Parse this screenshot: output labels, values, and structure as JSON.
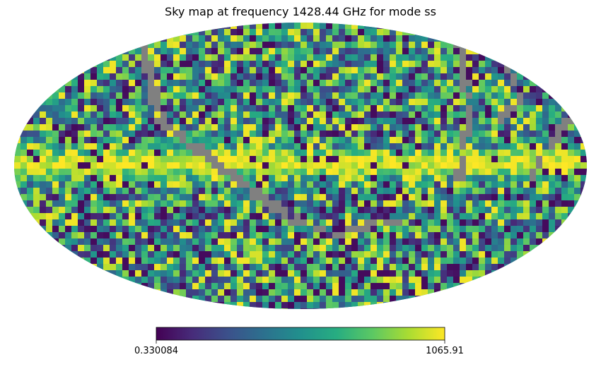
{
  "chart_data": {
    "type": "heatmap",
    "projection": "mollweide",
    "title": "Sky map at frequency 1428.44 GHz for mode ss",
    "colormap": "viridis",
    "colormap_stops": [
      "#440154",
      "#472c7a",
      "#3b518b",
      "#2c718e",
      "#21908d",
      "#27ad81",
      "#5cc863",
      "#aadc32",
      "#fde725"
    ],
    "masked_color": "#808080",
    "colorbar": {
      "orientation": "horizontal",
      "min_label": "0.330084",
      "max_label": "1065.91",
      "range": [
        0.330084,
        1065.91
      ]
    },
    "features": [
      "bright yellow galactic plane band along the equator",
      "grey masked stripe curving from the upper-left across the centre to the lower-middle",
      "grey masked arc along the right side of the map"
    ]
  }
}
